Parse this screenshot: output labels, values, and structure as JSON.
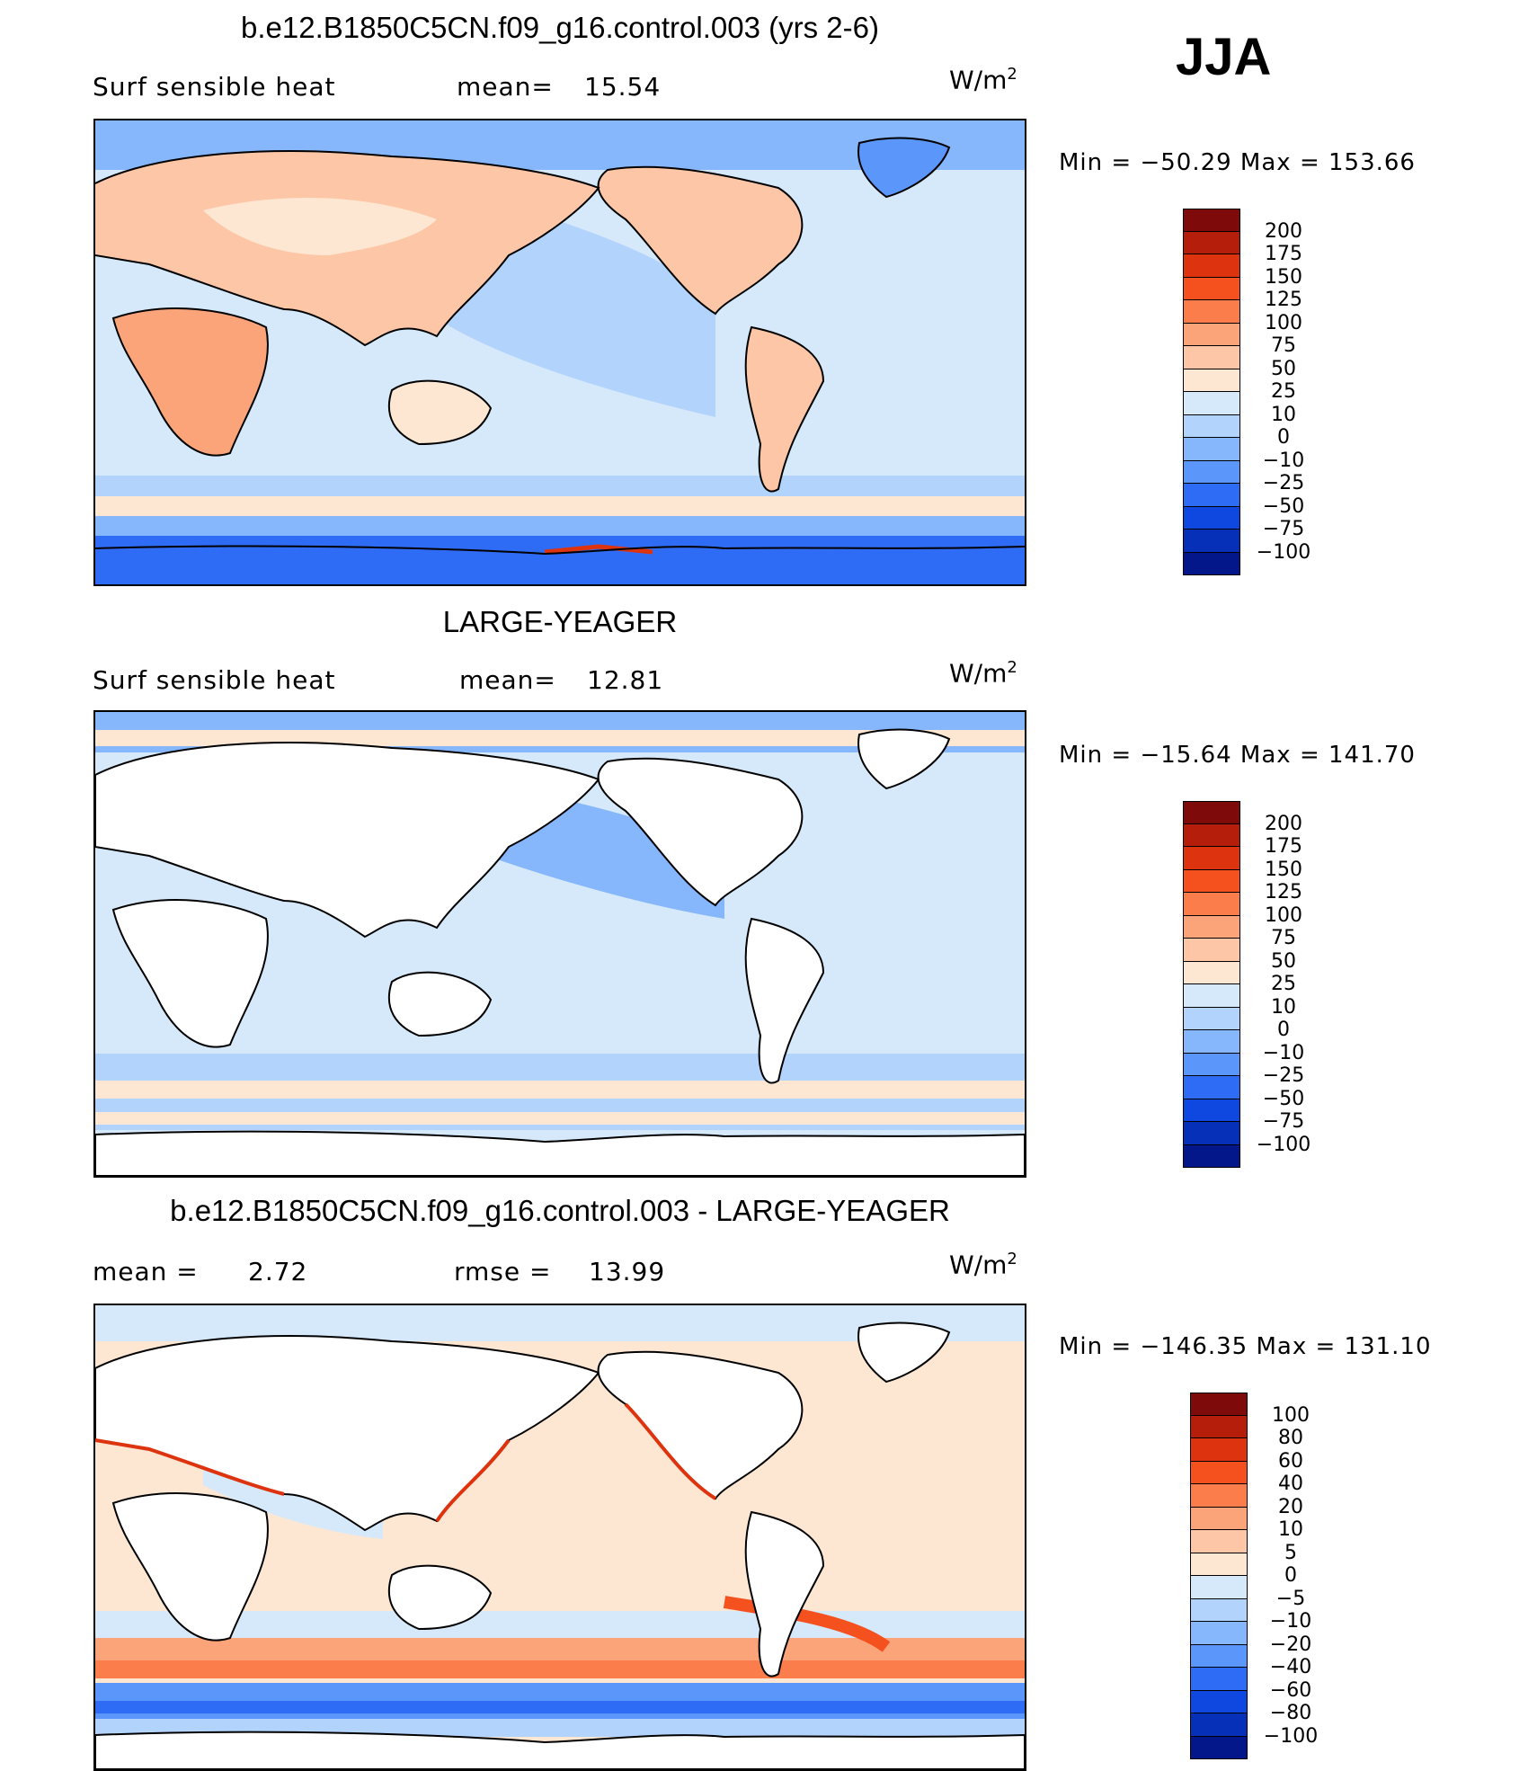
{
  "season": "JJA",
  "units": {
    "base": "W/m",
    "exp": "2"
  },
  "panels": [
    {
      "title": "b.e12.B1850C5CN.f09_g16.control.003 (yrs 2-6)",
      "left_label": "Surf  sensible  heat",
      "stat_label": "mean=",
      "stat_value": "15.54",
      "minmax": "Min  =  −50.29  Max  =  153.66",
      "colorbar": {
        "labels": [
          "200",
          "175",
          "150",
          "125",
          "100",
          "75",
          "50",
          "25",
          "10",
          "0",
          "−10",
          "−25",
          "−50",
          "−75",
          "−100"
        ],
        "colors": [
          "#7f0a0a",
          "#b51e0a",
          "#dd330e",
          "#f5511f",
          "#fb7d4b",
          "#fca479",
          "#fdc6a6",
          "#fde6d2",
          "#d6e9fb",
          "#b2d3fb",
          "#86b6fb",
          "#5b96fb",
          "#2f6cf5",
          "#0f48e1",
          "#0730b9",
          "#03168a"
        ]
      }
    },
    {
      "title": "LARGE-YEAGER",
      "left_label": "Surf  sensible  heat",
      "stat_label": "mean=",
      "stat_value": "12.81",
      "minmax": "Min  =  −15.64  Max  =  141.70",
      "colorbar": {
        "labels": [
          "200",
          "175",
          "150",
          "125",
          "100",
          "75",
          "50",
          "25",
          "10",
          "0",
          "−10",
          "−25",
          "−50",
          "−75",
          "−100"
        ],
        "colors": [
          "#7f0a0a",
          "#b51e0a",
          "#dd330e",
          "#f5511f",
          "#fb7d4b",
          "#fca479",
          "#fdc6a6",
          "#fde6d2",
          "#d6e9fb",
          "#b2d3fb",
          "#86b6fb",
          "#5b96fb",
          "#2f6cf5",
          "#0f48e1",
          "#0730b9",
          "#03168a"
        ]
      }
    },
    {
      "title": "b.e12.B1850C5CN.f09_g16.control.003 - LARGE-YEAGER",
      "left_label": "mean  =",
      "left_value": "2.72",
      "stat_label": "rmse  =",
      "stat_value": "13.99",
      "minmax": "Min  =  −146.35  Max  =  131.10",
      "colorbar": {
        "labels": [
          "100",
          "80",
          "60",
          "40",
          "20",
          "10",
          "5",
          "0",
          "−5",
          "−10",
          "−20",
          "−40",
          "−60",
          "−80",
          "−100"
        ],
        "colors": [
          "#7f0a0a",
          "#b51e0a",
          "#dd330e",
          "#f5511f",
          "#fb7d4b",
          "#fca479",
          "#fdc6a6",
          "#fde6d2",
          "#d6e9fb",
          "#b2d3fb",
          "#86b6fb",
          "#5b96fb",
          "#2f6cf5",
          "#0f48e1",
          "#0730b9",
          "#03168a"
        ]
      }
    }
  ]
}
